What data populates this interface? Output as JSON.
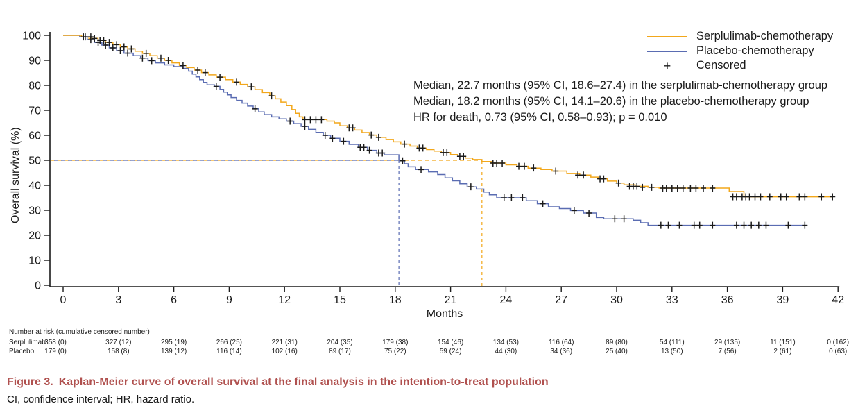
{
  "figure": {
    "caption_label": "Figure 3.",
    "caption_text": "Kaplan-Meier curve of overall survival at the final analysis in the intention-to-treat population",
    "caption_color": "#b0514f",
    "footnote": "CI, confidence interval; HR, hazard ratio."
  },
  "chart_data": {
    "type": "line",
    "subtype": "kaplan-meier-step",
    "title": "",
    "xlabel": "Months",
    "ylabel": "Overall survival (%)",
    "xlim": [
      0,
      42
    ],
    "ylim": [
      0,
      100
    ],
    "xticks": [
      0,
      3,
      6,
      9,
      12,
      15,
      18,
      21,
      24,
      27,
      30,
      33,
      36,
      39,
      42
    ],
    "yticks": [
      0,
      10,
      20,
      30,
      40,
      50,
      60,
      70,
      80,
      90,
      100
    ],
    "grid": false,
    "legend": {
      "position": "top-right",
      "entries": [
        {
          "label": "Serplulimab-chemotherapy",
          "color": "#F2A71B",
          "marker": "line"
        },
        {
          "label": "Placebo-chemotherapy",
          "color": "#5A6CB2",
          "marker": "line"
        },
        {
          "label": "Censored",
          "color": "#1a1a1a",
          "marker": "+"
        }
      ]
    },
    "annotations": [
      "Median, 22.7 months (95% CI, 18.6–27.4) in the serplulimab-chemotherapy group",
      "Median, 18.2 months (95% CI, 14.1–20.6) in the placebo-chemotherapy group",
      "HR for death, 0.73 (95% CI, 0.58–0.93); p = 0.010"
    ],
    "medians": {
      "serplulimab_months": 22.7,
      "placebo_months": 18.2,
      "reference_percent": 50
    },
    "series": [
      {
        "name": "Serplulimab-chemotherapy",
        "color": "#F2A71B",
        "steps": [
          [
            0,
            100
          ],
          [
            1.0,
            99.4
          ],
          [
            1.4,
            98.8
          ],
          [
            1.9,
            98.0
          ],
          [
            2.3,
            97.2
          ],
          [
            2.7,
            96.3
          ],
          [
            3.1,
            95.4
          ],
          [
            3.5,
            94.6
          ],
          [
            3.9,
            93.7
          ],
          [
            4.3,
            92.8
          ],
          [
            4.7,
            91.9
          ],
          [
            5.1,
            90.9
          ],
          [
            5.5,
            90.0
          ],
          [
            5.9,
            89.0
          ],
          [
            6.3,
            88.0
          ],
          [
            6.7,
            87.1
          ],
          [
            7.1,
            86.1
          ],
          [
            7.5,
            85.1
          ],
          [
            7.9,
            84.2
          ],
          [
            8.3,
            83.3
          ],
          [
            8.8,
            82.3
          ],
          [
            9.2,
            81.3
          ],
          [
            9.6,
            80.4
          ],
          [
            10.0,
            79.4
          ],
          [
            10.4,
            78.3
          ],
          [
            10.8,
            77.1
          ],
          [
            11.2,
            75.8
          ],
          [
            11.5,
            74.6
          ],
          [
            11.8,
            73.3
          ],
          [
            12.1,
            71.9
          ],
          [
            12.4,
            70.3
          ],
          [
            12.6,
            68.8
          ],
          [
            12.8,
            67.4
          ],
          [
            13.0,
            66.3
          ],
          [
            14.3,
            65.7
          ],
          [
            14.7,
            65.0
          ],
          [
            15.0,
            63.8
          ],
          [
            15.4,
            63.0
          ],
          [
            15.8,
            62.1
          ],
          [
            16.2,
            61.1
          ],
          [
            16.6,
            60.1
          ],
          [
            17.0,
            59.2
          ],
          [
            17.5,
            58.3
          ],
          [
            17.9,
            57.4
          ],
          [
            18.3,
            56.5
          ],
          [
            18.8,
            55.7
          ],
          [
            19.2,
            54.9
          ],
          [
            19.7,
            54.3
          ],
          [
            20.1,
            53.7
          ],
          [
            20.5,
            53.1
          ],
          [
            21.0,
            52.3
          ],
          [
            21.4,
            51.6
          ],
          [
            21.8,
            50.9
          ],
          [
            22.2,
            50.3
          ],
          [
            22.7,
            49.5
          ],
          [
            23.2,
            48.9
          ],
          [
            24.0,
            48.2
          ],
          [
            24.6,
            47.6
          ],
          [
            25.2,
            46.9
          ],
          [
            25.9,
            46.3
          ],
          [
            26.5,
            45.7
          ],
          [
            27.3,
            44.7
          ],
          [
            28.0,
            44.1
          ],
          [
            28.6,
            43.3
          ],
          [
            29.0,
            42.6
          ],
          [
            29.5,
            41.7
          ],
          [
            30.0,
            40.9
          ],
          [
            30.4,
            40.2
          ],
          [
            31.0,
            39.6
          ],
          [
            31.7,
            39.2
          ],
          [
            32.3,
            38.9
          ],
          [
            36.1,
            37.5
          ],
          [
            36.9,
            35.4
          ],
          [
            41.7,
            35.4
          ]
        ],
        "censors": [
          [
            1.2,
            99.4
          ],
          [
            1.5,
            99.4
          ],
          [
            1.7,
            98.8
          ],
          [
            2.0,
            98.0
          ],
          [
            2.2,
            98.0
          ],
          [
            2.5,
            97.2
          ],
          [
            2.9,
            96.3
          ],
          [
            3.3,
            95.4
          ],
          [
            3.7,
            94.6
          ],
          [
            4.5,
            92.8
          ],
          [
            5.3,
            90.9
          ],
          [
            5.7,
            90.0
          ],
          [
            6.5,
            87.9
          ],
          [
            7.3,
            86.1
          ],
          [
            7.7,
            85.1
          ],
          [
            8.5,
            83.3
          ],
          [
            9.4,
            81.3
          ],
          [
            10.2,
            79.4
          ],
          [
            11.3,
            75.8
          ],
          [
            13.1,
            66.3
          ],
          [
            13.4,
            66.3
          ],
          [
            13.7,
            66.3
          ],
          [
            14.0,
            66.3
          ],
          [
            15.5,
            63.0
          ],
          [
            15.7,
            63.0
          ],
          [
            16.7,
            60.1
          ],
          [
            17.1,
            59.2
          ],
          [
            18.5,
            56.5
          ],
          [
            19.3,
            54.9
          ],
          [
            19.5,
            54.9
          ],
          [
            20.6,
            53.1
          ],
          [
            20.8,
            53.1
          ],
          [
            21.5,
            51.6
          ],
          [
            21.7,
            51.6
          ],
          [
            23.3,
            48.9
          ],
          [
            23.5,
            48.9
          ],
          [
            23.8,
            48.9
          ],
          [
            24.7,
            47.6
          ],
          [
            25.0,
            47.6
          ],
          [
            25.5,
            46.9
          ],
          [
            26.7,
            45.7
          ],
          [
            27.9,
            44.1
          ],
          [
            28.2,
            44.1
          ],
          [
            29.1,
            42.6
          ],
          [
            29.3,
            42.6
          ],
          [
            30.1,
            40.9
          ],
          [
            30.7,
            39.6
          ],
          [
            30.9,
            39.6
          ],
          [
            31.1,
            39.6
          ],
          [
            31.4,
            39.2
          ],
          [
            31.9,
            39.2
          ],
          [
            32.5,
            38.9
          ],
          [
            32.7,
            38.9
          ],
          [
            33.0,
            38.9
          ],
          [
            33.3,
            38.9
          ],
          [
            33.6,
            38.9
          ],
          [
            34.0,
            38.9
          ],
          [
            34.3,
            38.9
          ],
          [
            34.7,
            38.9
          ],
          [
            35.2,
            38.9
          ],
          [
            36.3,
            35.4
          ],
          [
            36.5,
            35.4
          ],
          [
            36.8,
            35.4
          ],
          [
            37.0,
            35.4
          ],
          [
            37.2,
            35.4
          ],
          [
            37.5,
            35.4
          ],
          [
            37.8,
            35.4
          ],
          [
            38.3,
            35.4
          ],
          [
            38.9,
            35.4
          ],
          [
            39.2,
            35.4
          ],
          [
            39.9,
            35.4
          ],
          [
            40.2,
            35.4
          ],
          [
            41.1,
            35.4
          ],
          [
            41.7,
            35.4
          ]
        ]
      },
      {
        "name": "Placebo-chemotherapy",
        "color": "#5A6CB2",
        "steps": [
          [
            0,
            100
          ],
          [
            0.9,
            99.4
          ],
          [
            1.3,
            98.3
          ],
          [
            1.7,
            97.2
          ],
          [
            2.1,
            96.1
          ],
          [
            2.5,
            95.0
          ],
          [
            2.9,
            93.9
          ],
          [
            3.3,
            92.9
          ],
          [
            3.8,
            91.9
          ],
          [
            4.2,
            90.9
          ],
          [
            4.6,
            89.9
          ],
          [
            5.0,
            89.0
          ],
          [
            5.5,
            88.2
          ],
          [
            6.0,
            87.5
          ],
          [
            6.5,
            86.8
          ],
          [
            6.8,
            85.7
          ],
          [
            7.0,
            84.5
          ],
          [
            7.2,
            83.4
          ],
          [
            7.4,
            82.3
          ],
          [
            7.6,
            81.2
          ],
          [
            7.8,
            80.2
          ],
          [
            8.2,
            79.6
          ],
          [
            8.5,
            78.4
          ],
          [
            8.7,
            77.3
          ],
          [
            8.9,
            76.2
          ],
          [
            9.1,
            75.1
          ],
          [
            9.4,
            74.0
          ],
          [
            9.7,
            72.9
          ],
          [
            10.0,
            71.7
          ],
          [
            10.3,
            70.6
          ],
          [
            10.6,
            69.4
          ],
          [
            10.9,
            68.3
          ],
          [
            11.3,
            67.4
          ],
          [
            11.7,
            66.6
          ],
          [
            12.1,
            65.7
          ],
          [
            12.5,
            64.7
          ],
          [
            12.9,
            63.6
          ],
          [
            13.3,
            62.4
          ],
          [
            13.7,
            61.2
          ],
          [
            14.1,
            60.0
          ],
          [
            14.5,
            58.8
          ],
          [
            15.0,
            57.6
          ],
          [
            15.5,
            56.4
          ],
          [
            16.0,
            55.2
          ],
          [
            16.5,
            54.0
          ],
          [
            17.0,
            52.9
          ],
          [
            17.4,
            52.2
          ],
          [
            18.2,
            49.8
          ],
          [
            18.5,
            48.6
          ],
          [
            18.7,
            47.4
          ],
          [
            19.1,
            46.3
          ],
          [
            19.8,
            45.4
          ],
          [
            20.3,
            44.3
          ],
          [
            20.7,
            43.0
          ],
          [
            21.1,
            41.8
          ],
          [
            21.5,
            40.6
          ],
          [
            21.9,
            39.4
          ],
          [
            22.4,
            38.5
          ],
          [
            22.8,
            37.3
          ],
          [
            23.1,
            36.2
          ],
          [
            23.5,
            35.0
          ],
          [
            25.1,
            33.8
          ],
          [
            25.7,
            32.6
          ],
          [
            26.3,
            31.4
          ],
          [
            26.9,
            30.7
          ],
          [
            27.5,
            29.9
          ],
          [
            28.2,
            28.9
          ],
          [
            28.9,
            27.1
          ],
          [
            29.3,
            26.6
          ],
          [
            30.9,
            26.0
          ],
          [
            31.3,
            25.0
          ],
          [
            31.7,
            24.0
          ],
          [
            40.3,
            24.0
          ]
        ],
        "censors": [
          [
            1.1,
            99.4
          ],
          [
            1.5,
            98.3
          ],
          [
            1.9,
            97.2
          ],
          [
            2.3,
            96.1
          ],
          [
            2.7,
            95.0
          ],
          [
            3.1,
            93.9
          ],
          [
            3.5,
            92.9
          ],
          [
            4.3,
            90.9
          ],
          [
            4.8,
            89.9
          ],
          [
            8.3,
            79.6
          ],
          [
            10.4,
            70.6
          ],
          [
            12.3,
            65.7
          ],
          [
            13.1,
            63.6
          ],
          [
            14.2,
            60.0
          ],
          [
            14.6,
            58.8
          ],
          [
            15.2,
            57.6
          ],
          [
            16.1,
            55.2
          ],
          [
            16.3,
            55.2
          ],
          [
            16.6,
            54.0
          ],
          [
            17.1,
            52.9
          ],
          [
            17.3,
            52.9
          ],
          [
            18.4,
            49.8
          ],
          [
            19.4,
            46.3
          ],
          [
            22.1,
            39.4
          ],
          [
            23.9,
            35.0
          ],
          [
            24.3,
            35.0
          ],
          [
            24.9,
            35.0
          ],
          [
            26.0,
            32.6
          ],
          [
            27.7,
            29.9
          ],
          [
            28.5,
            28.9
          ],
          [
            29.9,
            26.6
          ],
          [
            30.4,
            26.6
          ],
          [
            32.4,
            24.0
          ],
          [
            32.8,
            24.0
          ],
          [
            33.4,
            24.0
          ],
          [
            34.2,
            24.0
          ],
          [
            34.5,
            24.0
          ],
          [
            35.2,
            24.0
          ],
          [
            36.5,
            24.0
          ],
          [
            36.9,
            24.0
          ],
          [
            37.3,
            24.0
          ],
          [
            37.7,
            24.0
          ],
          [
            38.1,
            24.0
          ],
          [
            39.3,
            24.0
          ],
          [
            40.2,
            24.0
          ]
        ]
      }
    ],
    "number_at_risk": {
      "header": "Number at risk (cumulative censored number)",
      "timepoints": [
        0,
        3,
        6,
        9,
        12,
        15,
        18,
        21,
        24,
        27,
        30,
        33,
        36,
        39,
        42
      ],
      "rows": [
        {
          "label": "Serplulimab",
          "values": [
            "358 (0)",
            "327 (12)",
            "295 (19)",
            "266 (25)",
            "221 (31)",
            "204 (35)",
            "179 (38)",
            "154 (46)",
            "134 (53)",
            "116 (64)",
            "89 (80)",
            "54 (111)",
            "29 (135)",
            "11 (151)",
            "0 (162)"
          ]
        },
        {
          "label": "Placebo",
          "values": [
            "179 (0)",
            "158 (8)",
            "139 (12)",
            "116 (14)",
            "102 (16)",
            "89 (17)",
            "75 (22)",
            "59 (24)",
            "44 (30)",
            "34 (36)",
            "25 (40)",
            "13 (50)",
            "7 (56)",
            "2 (61)",
            "0 (63)"
          ]
        }
      ]
    }
  }
}
